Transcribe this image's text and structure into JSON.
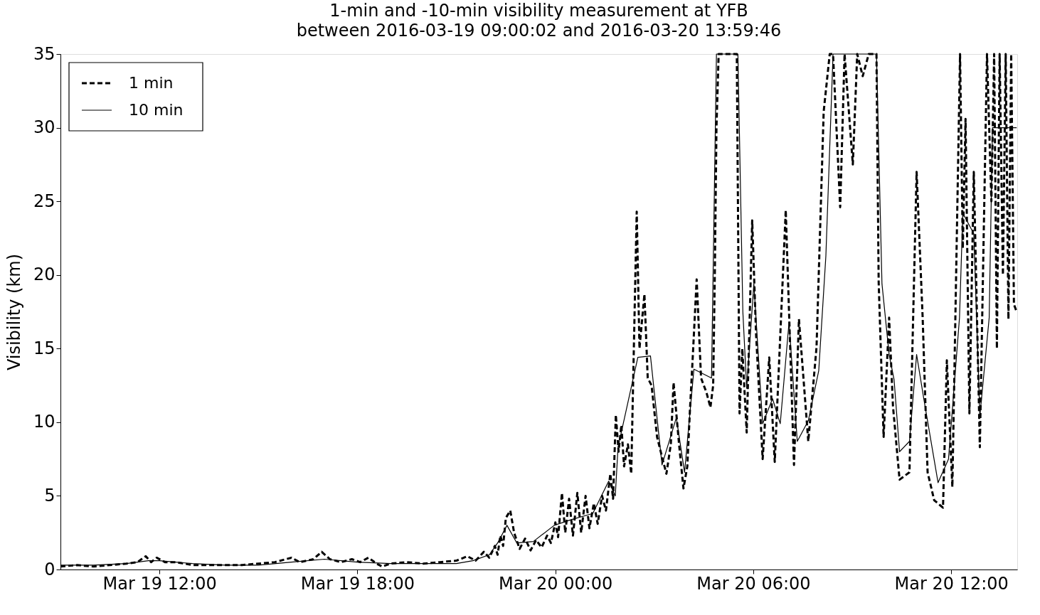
{
  "chart_data": {
    "type": "line",
    "title": "1-min and -10-min visibility measurement at YFB",
    "subtitle": "between 2016-03-19 09:00:02 and 2016-03-20 13:59:46",
    "ylabel": "Visibility (km)",
    "xlim": [
      "2016-03-19T09:00",
      "2016-03-20T14:00"
    ],
    "xticks": [
      {
        "value": "2016-03-19T12:00",
        "label": "Mar 19 12:00"
      },
      {
        "value": "2016-03-19T18:00",
        "label": "Mar 19 18:00"
      },
      {
        "value": "2016-03-20T00:00",
        "label": "Mar 20 00:00"
      },
      {
        "value": "2016-03-20T06:00",
        "label": "Mar 20 06:00"
      },
      {
        "value": "2016-03-20T12:00",
        "label": "Mar 20 12:00"
      }
    ],
    "ylim": [
      0,
      35
    ],
    "yticks": [
      0,
      5,
      10,
      15,
      20,
      25,
      30,
      35
    ],
    "grid": false,
    "legend": "top left",
    "series": [
      {
        "name": "1 min",
        "color": "#000000",
        "line_style": "dashed",
        "x": [
          "2016-03-19T09:00",
          "2016-03-19T09:30",
          "2016-03-19T10:00",
          "2016-03-19T10:30",
          "2016-03-19T11:00",
          "2016-03-19T11:20",
          "2016-03-19T11:35",
          "2016-03-19T11:45",
          "2016-03-19T11:55",
          "2016-03-19T12:10",
          "2016-03-19T12:30",
          "2016-03-19T13:00",
          "2016-03-19T13:30",
          "2016-03-19T14:00",
          "2016-03-19T14:30",
          "2016-03-19T15:00",
          "2016-03-19T15:30",
          "2016-03-19T16:00",
          "2016-03-19T16:15",
          "2016-03-19T16:40",
          "2016-03-19T16:55",
          "2016-03-19T17:10",
          "2016-03-19T17:30",
          "2016-03-19T17:50",
          "2016-03-19T18:05",
          "2016-03-19T18:20",
          "2016-03-19T18:35",
          "2016-03-19T18:45",
          "2016-03-19T19:00",
          "2016-03-19T19:30",
          "2016-03-19T20:00",
          "2016-03-19T20:30",
          "2016-03-19T21:00",
          "2016-03-19T21:20",
          "2016-03-19T21:35",
          "2016-03-19T21:50",
          "2016-03-19T22:00",
          "2016-03-19T22:10",
          "2016-03-19T22:15",
          "2016-03-19T22:20",
          "2016-03-19T22:25",
          "2016-03-19T22:30",
          "2016-03-19T22:38",
          "2016-03-19T22:45",
          "2016-03-19T22:55",
          "2016-03-19T23:05",
          "2016-03-19T23:15",
          "2016-03-19T23:25",
          "2016-03-19T23:35",
          "2016-03-19T23:45",
          "2016-03-19T23:52",
          "2016-03-20T00:00",
          "2016-03-20T00:05",
          "2016-03-20T00:12",
          "2016-03-20T00:18",
          "2016-03-20T00:25",
          "2016-03-20T00:32",
          "2016-03-20T00:40",
          "2016-03-20T00:47",
          "2016-03-20T00:55",
          "2016-03-20T01:02",
          "2016-03-20T01:10",
          "2016-03-20T01:17",
          "2016-03-20T01:25",
          "2016-03-20T01:32",
          "2016-03-20T01:40",
          "2016-03-20T01:45",
          "2016-03-20T01:50",
          "2016-03-20T01:55",
          "2016-03-20T02:00",
          "2016-03-20T02:05",
          "2016-03-20T02:12",
          "2016-03-20T02:18",
          "2016-03-20T02:25",
          "2016-03-20T02:28",
          "2016-03-20T02:33",
          "2016-03-20T02:42",
          "2016-03-20T02:48",
          "2016-03-20T02:55",
          "2016-03-20T03:05",
          "2016-03-20T03:15",
          "2016-03-20T03:22",
          "2016-03-20T03:30",
          "2016-03-20T03:35",
          "2016-03-20T03:45",
          "2016-03-20T03:53",
          "2016-03-20T04:00",
          "2016-03-20T04:05",
          "2016-03-20T04:10",
          "2016-03-20T04:17",
          "2016-03-20T04:25",
          "2016-03-20T04:35",
          "2016-03-20T04:42",
          "2016-03-20T04:47",
          "2016-03-20T04:50",
          "2016-03-20T04:53",
          "2016-03-20T04:57",
          "2016-03-20T05:30",
          "2016-03-20T05:35",
          "2016-03-20T05:40",
          "2016-03-20T05:48",
          "2016-03-20T05:58",
          "2016-03-20T06:05",
          "2016-03-20T06:17",
          "2016-03-20T06:29",
          "2016-03-20T06:39",
          "2016-03-20T06:59",
          "2016-03-20T07:14",
          "2016-03-20T07:23",
          "2016-03-20T07:40",
          "2016-03-20T07:55",
          "2016-03-20T08:08",
          "2016-03-20T08:19",
          "2016-03-20T08:25",
          "2016-03-20T08:38",
          "2016-03-20T08:46",
          "2016-03-20T09:01",
          "2016-03-20T09:09",
          "2016-03-20T09:19",
          "2016-03-20T09:30",
          "2016-03-20T09:44",
          "2016-03-20T09:48",
          "2016-03-20T09:57",
          "2016-03-20T10:07",
          "2016-03-20T10:14",
          "2016-03-20T10:26",
          "2016-03-20T10:44",
          "2016-03-20T10:57",
          "2016-03-20T11:08",
          "2016-03-20T11:17",
          "2016-03-20T11:29",
          "2016-03-20T11:45",
          "2016-03-20T11:52",
          "2016-03-20T12:02",
          "2016-03-20T12:16",
          "2016-03-20T12:21",
          "2016-03-20T12:26",
          "2016-03-20T12:33",
          "2016-03-20T12:41",
          "2016-03-20T12:52",
          "2016-03-20T13:05",
          "2016-03-20T13:13",
          "2016-03-20T13:18",
          "2016-03-20T13:23",
          "2016-03-20T13:28",
          "2016-03-20T13:34",
          "2016-03-20T13:39",
          "2016-03-20T13:44",
          "2016-03-20T13:49",
          "2016-03-20T13:54",
          "2016-03-20T13:59"
        ],
        "values": [
          0.2,
          0.3,
          0.2,
          0.3,
          0.4,
          0.5,
          0.9,
          0.5,
          0.8,
          0.5,
          0.5,
          0.3,
          0.3,
          0.3,
          0.3,
          0.4,
          0.5,
          0.8,
          0.5,
          0.7,
          1.2,
          0.7,
          0.5,
          0.7,
          0.5,
          0.8,
          0.4,
          0.2,
          0.4,
          0.5,
          0.4,
          0.5,
          0.6,
          0.9,
          0.6,
          1.2,
          0.8,
          1.6,
          1.0,
          2.3,
          1.6,
          3.5,
          4.0,
          2.5,
          1.4,
          2.1,
          1.3,
          2.0,
          1.5,
          2.3,
          1.8,
          3.2,
          2.2,
          5.2,
          2.5,
          4.8,
          2.3,
          5.2,
          2.5,
          5.0,
          2.8,
          4.5,
          3.1,
          5.0,
          4.0,
          6.5,
          4.8,
          10.5,
          8.0,
          9.8,
          7.0,
          8.5,
          6.5,
          19.0,
          24.3,
          15.0,
          18.7,
          13.0,
          12.5,
          9.0,
          7.5,
          6.5,
          8.5,
          12.7,
          8.5,
          5.5,
          7.0,
          11.0,
          14.5,
          19.7,
          13.0,
          12.0,
          11.0,
          12.5,
          20,
          30,
          35,
          35,
          10.6,
          15,
          9.3,
          23.7,
          16,
          7.5,
          14.4,
          7.3,
          24.4,
          7.1,
          17.0,
          8.7,
          15.1,
          31.1,
          35,
          35,
          24.6,
          35,
          27.5,
          35,
          33.5,
          35,
          35,
          19.5,
          9.0,
          17.1,
          11.1,
          6.1,
          6.6,
          27.0,
          17.1,
          6.6,
          4.7,
          4.2,
          14.2,
          5.6,
          35,
          21.8,
          30.6,
          10.6,
          27.0,
          8.3,
          35,
          25,
          35,
          15,
          35,
          20,
          35,
          17,
          35,
          18,
          17.5
        ]
      },
      {
        "name": "10 min",
        "color": "#000000",
        "line_style": "solid",
        "x": [
          "2016-03-19T09:00",
          "2016-03-19T10:00",
          "2016-03-19T11:00",
          "2016-03-19T11:40",
          "2016-03-19T12:00",
          "2016-03-19T13:00",
          "2016-03-19T14:00",
          "2016-03-19T15:00",
          "2016-03-19T16:00",
          "2016-03-19T17:00",
          "2016-03-19T18:00",
          "2016-03-19T19:00",
          "2016-03-19T20:00",
          "2016-03-19T21:00",
          "2016-03-19T21:30",
          "2016-03-19T22:00",
          "2016-03-19T22:15",
          "2016-03-19T22:32",
          "2016-03-19T22:50",
          "2016-03-19T23:20",
          "2016-03-19T23:58",
          "2016-03-20T00:30",
          "2016-03-20T01:08",
          "2016-03-20T01:37",
          "2016-03-20T01:49",
          "2016-03-20T01:54",
          "2016-03-20T02:30",
          "2016-03-20T02:53",
          "2016-03-20T03:14",
          "2016-03-20T03:40",
          "2016-03-20T03:55",
          "2016-03-20T04:12",
          "2016-03-20T04:44",
          "2016-03-20T04:53",
          "2016-03-20T05:32",
          "2016-03-20T05:41",
          "2016-03-20T05:48",
          "2016-03-20T06:01",
          "2016-03-20T06:17",
          "2016-03-20T06:35",
          "2016-03-20T06:49",
          "2016-03-20T07:05",
          "2016-03-20T07:20",
          "2016-03-20T07:40",
          "2016-03-20T07:59",
          "2016-03-20T08:12",
          "2016-03-20T08:25",
          "2016-03-20T09:44",
          "2016-03-20T09:54",
          "2016-03-20T10:07",
          "2016-03-20T10:16",
          "2016-03-20T10:26",
          "2016-03-20T10:44",
          "2016-03-20T10:57",
          "2016-03-20T11:10",
          "2016-03-20T11:36",
          "2016-03-20T11:55",
          "2016-03-20T12:15",
          "2016-03-20T12:21",
          "2016-03-20T12:41",
          "2016-03-20T12:52",
          "2016-03-20T13:09",
          "2016-03-20T13:15",
          "2016-03-20T13:59"
        ],
        "values": [
          0.3,
          0.3,
          0.4,
          0.6,
          0.6,
          0.4,
          0.3,
          0.3,
          0.5,
          0.7,
          0.5,
          0.4,
          0.4,
          0.4,
          0.6,
          1.0,
          1.8,
          3.0,
          1.8,
          1.9,
          3.0,
          3.4,
          3.8,
          6.0,
          5.0,
          8.3,
          14.4,
          14.5,
          7.1,
          10.3,
          6.6,
          13.6,
          13.0,
          35,
          35,
          17.5,
          12.3,
          19.4,
          9.9,
          11.6,
          9.9,
          16.8,
          8.7,
          10.1,
          13.5,
          21.3,
          35,
          35,
          19.4,
          14.6,
          12.9,
          8.0,
          8.7,
          14.6,
          11.6,
          5.9,
          7.5,
          17.1,
          24.2,
          22.8,
          10.4,
          17.1,
          30,
          30
        ]
      }
    ]
  }
}
